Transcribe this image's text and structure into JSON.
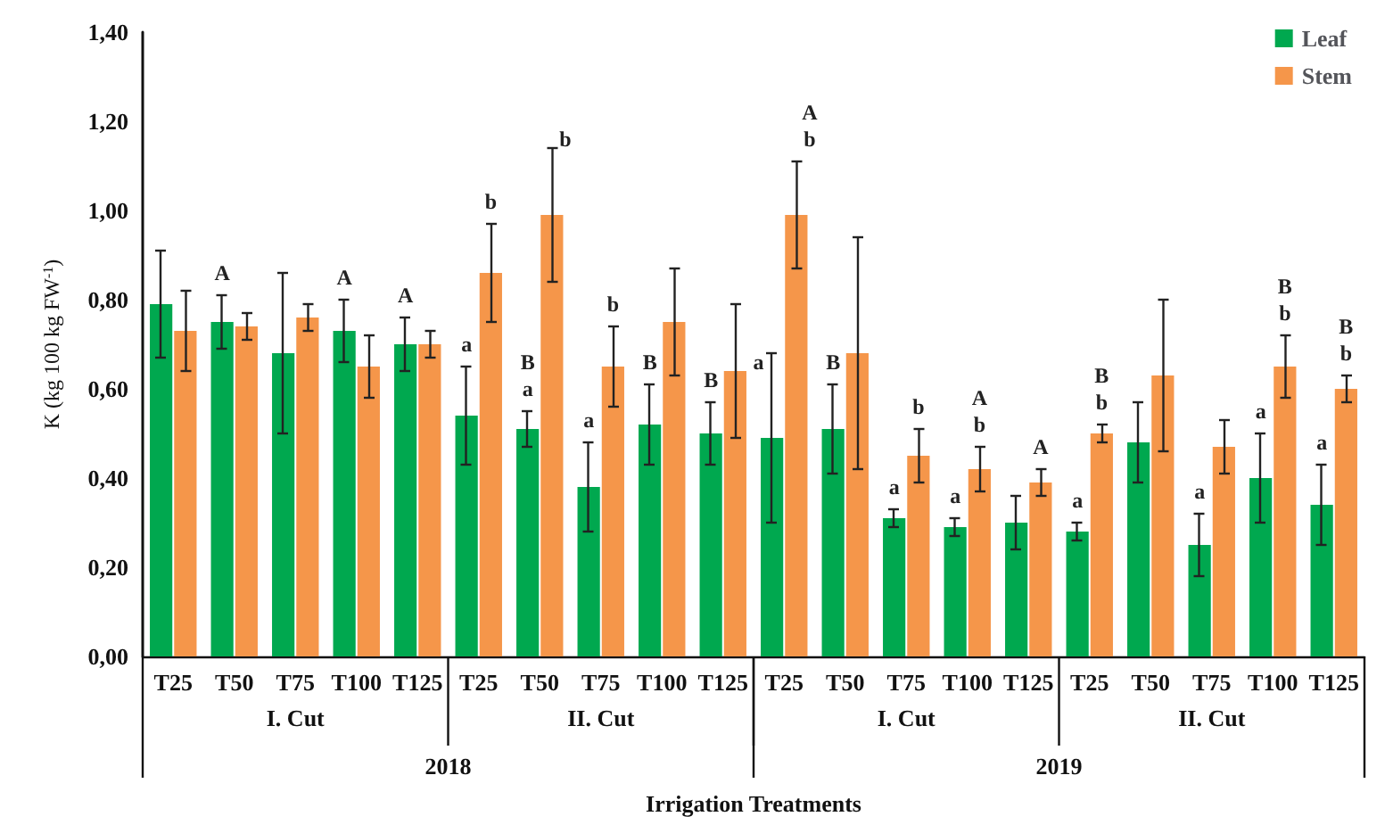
{
  "chart_data": {
    "type": "bar",
    "xlabel": "Irrigation Treatments",
    "ylabel": "K (kg 100 kg FW$^{-1}$)",
    "categories": [
      "T25",
      "T50",
      "T75",
      "T100",
      "T125",
      "T25",
      "T50",
      "T75",
      "T100",
      "T125",
      "T25",
      "T50",
      "T75",
      "T100",
      "T125",
      "T25",
      "T50",
      "T75",
      "T100",
      "T125"
    ],
    "series": [
      {
        "name": "Leaf",
        "color": "#00a84f",
        "values": [
          0.79,
          0.75,
          0.68,
          0.73,
          0.7,
          0.54,
          0.51,
          0.38,
          0.52,
          0.5,
          0.49,
          0.51,
          0.31,
          0.29,
          0.3,
          0.28,
          0.48,
          0.25,
          0.4,
          0.34
        ],
        "errors": [
          0.12,
          0.06,
          0.18,
          0.07,
          0.06,
          0.11,
          0.04,
          0.1,
          0.09,
          0.07,
          0.19,
          0.1,
          0.02,
          0.02,
          0.06,
          0.02,
          0.09,
          0.07,
          0.1,
          0.09
        ],
        "value_labels": [
          null,
          "A",
          null,
          "A",
          "A",
          "a",
          "B\na",
          "a",
          "B",
          "B",
          "a",
          "B",
          "a",
          "a",
          null,
          "a",
          null,
          "a",
          "a",
          "a"
        ]
      },
      {
        "name": "Stem",
        "color": "#f5964a",
        "values": [
          0.73,
          0.74,
          0.76,
          0.65,
          0.7,
          0.86,
          0.99,
          0.65,
          0.75,
          0.64,
          0.99,
          0.68,
          0.45,
          0.42,
          0.39,
          0.5,
          0.63,
          0.47,
          0.65,
          0.6
        ],
        "errors": [
          0.09,
          0.03,
          0.03,
          0.07,
          0.03,
          0.11,
          0.15,
          0.09,
          0.12,
          0.15,
          0.12,
          0.26,
          0.06,
          0.05,
          0.03,
          0.02,
          0.17,
          0.06,
          0.07,
          0.03
        ],
        "value_labels": [
          null,
          null,
          null,
          null,
          null,
          "b",
          "b",
          "b",
          null,
          null,
          "A\nb",
          null,
          "b",
          "A\nb",
          "A",
          "B\nb",
          null,
          null,
          "B\nb",
          "B\nb"
        ]
      }
    ],
    "annotations": [
      "I. Cut",
      "II. Cut",
      "I. Cut",
      "II. Cut",
      "2018",
      "2019"
    ],
    "ylim": [
      0,
      1.4
    ],
    "yticks": [
      {
        "value": 0,
        "label": "0,00"
      },
      {
        "value": 0.2,
        "label": "0,20"
      },
      {
        "value": 0.4,
        "label": "0,40"
      },
      {
        "value": 0.6,
        "label": "0,60"
      },
      {
        "value": 0.8,
        "label": "0,80"
      },
      {
        "value": 1.0,
        "label": "1,00"
      },
      {
        "value": 1.2,
        "label": "1,20"
      },
      {
        "value": 1.4,
        "label": "1,40"
      }
    ],
    "grid": false,
    "legend": "top right"
  }
}
